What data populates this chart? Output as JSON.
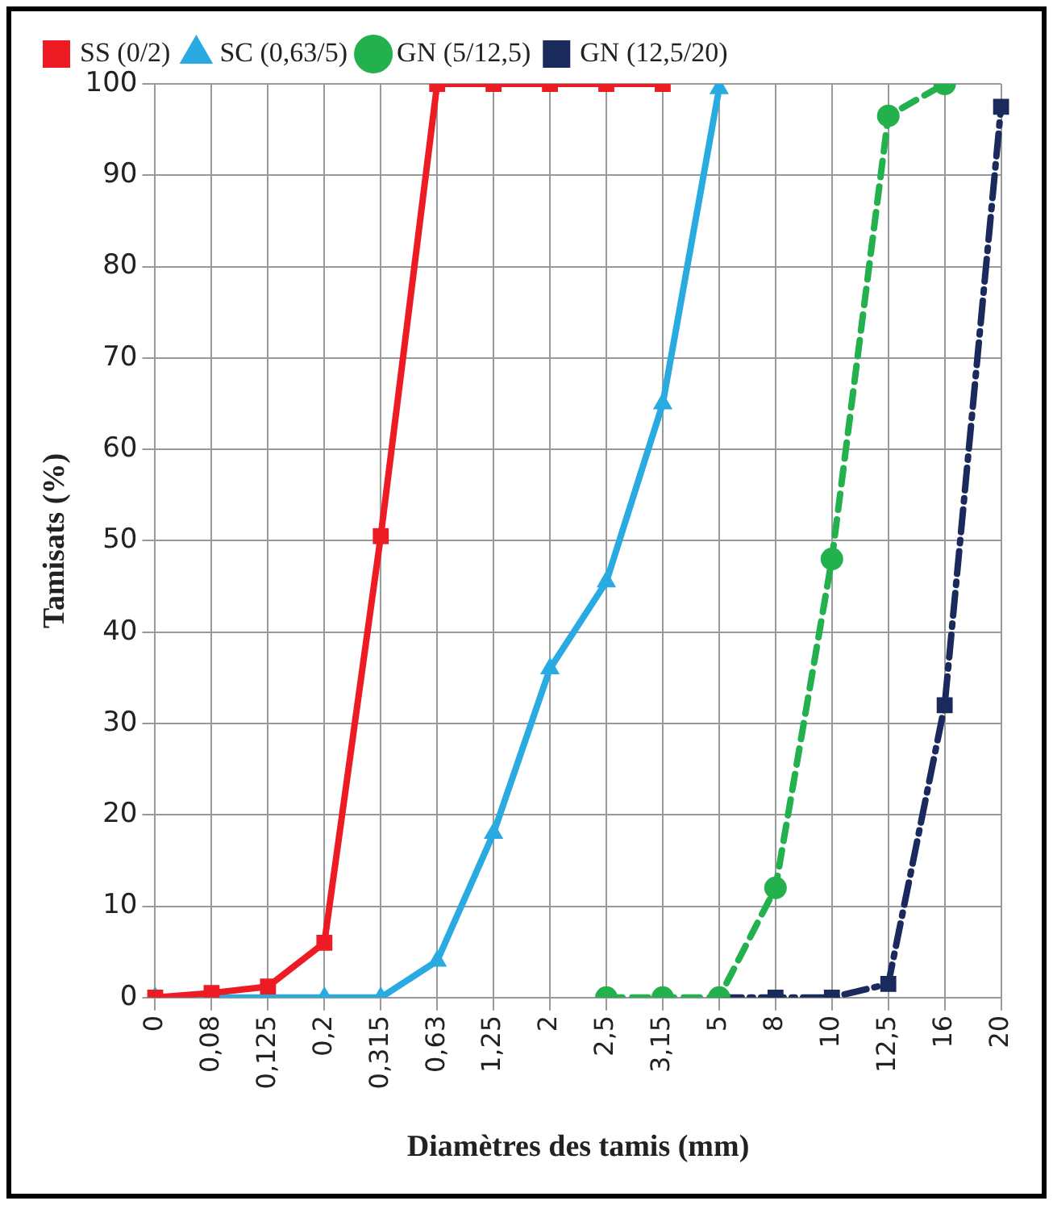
{
  "chart_data": {
    "type": "line",
    "xlabel": "Diamètres des tamis (mm)",
    "ylabel": "Tamisats (%)",
    "categories": [
      "0",
      "0,08",
      "0,125",
      "0,2",
      "0,315",
      "0,63",
      "1,25",
      "2",
      "2,5",
      "3,15",
      "5",
      "8",
      "10",
      "12,5",
      "16",
      "20"
    ],
    "series": [
      {
        "name": "SS (0/2)",
        "color": "#ed1c24",
        "marker": "square",
        "line_style": "solid",
        "values": [
          0,
          0.5,
          1.2,
          6,
          50.5,
          100,
          100,
          100,
          100,
          100,
          null,
          null,
          null,
          null,
          null,
          null
        ]
      },
      {
        "name": "SC (0,63/5)",
        "color": "#29abe2",
        "marker": "triangle",
        "line_style": "solid",
        "values": [
          0,
          0,
          0,
          0,
          0,
          4,
          18,
          36,
          45.5,
          65,
          99.5,
          null,
          null,
          null,
          null,
          null
        ]
      },
      {
        "name": "GN (5/12,5)",
        "color": "#22b14c",
        "marker": "circle",
        "line_style": "dashed",
        "values": [
          null,
          null,
          null,
          null,
          null,
          null,
          null,
          null,
          0,
          0,
          0,
          12,
          48,
          96.5,
          100,
          null
        ]
      },
      {
        "name": "GN (12,5/20)",
        "color": "#1b2a5c",
        "marker": "square",
        "line_style": "dotted",
        "values": [
          null,
          null,
          null,
          null,
          null,
          null,
          null,
          null,
          null,
          null,
          0,
          0,
          0,
          1.5,
          32,
          97.5
        ]
      }
    ],
    "ylim": [
      0,
      100
    ],
    "yticks": [
      0,
      10,
      20,
      30,
      40,
      50,
      60,
      70,
      80,
      90,
      100
    ],
    "grid": true,
    "legend": "top"
  }
}
